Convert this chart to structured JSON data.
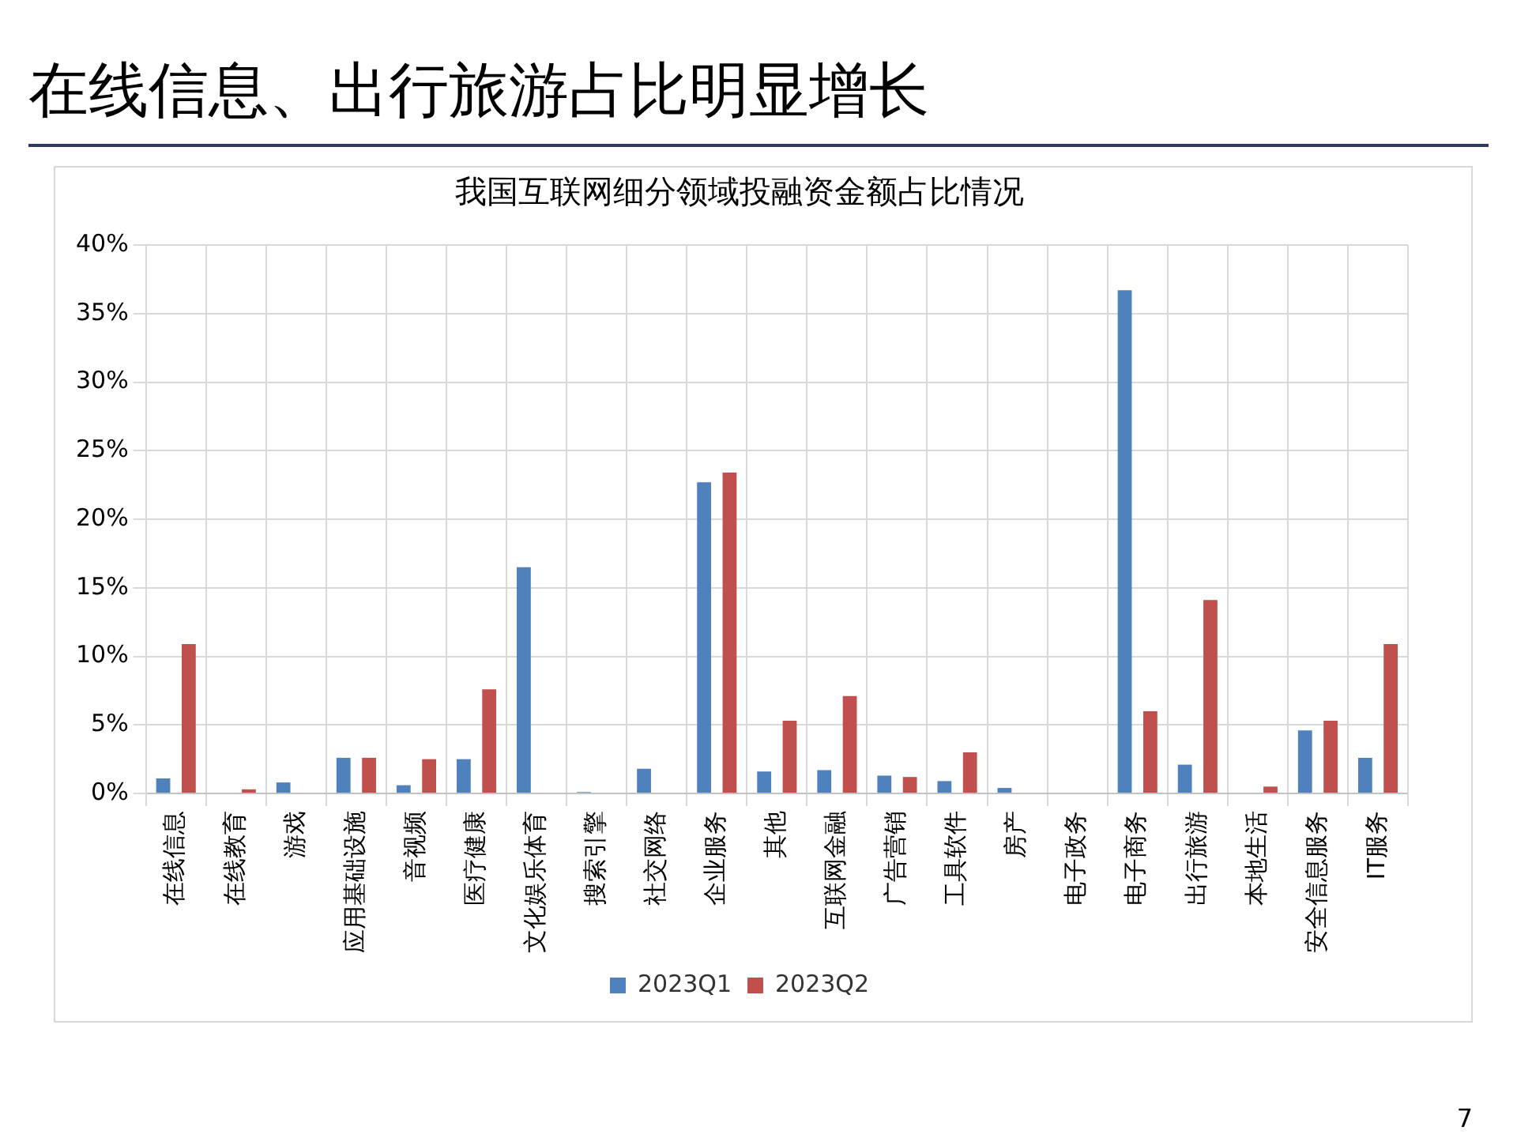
{
  "chart_data": {
    "type": "bar",
    "title": "在线信息、出行旅游占比明显增长",
    "subtitle": "我国互联网细分领域投融资金额占比情况",
    "categories": [
      "在线信息",
      "在线教育",
      "游戏",
      "应用基础设施",
      "音视频",
      "医疗健康",
      "文化娱乐体育",
      "搜索引擎",
      "社交网络",
      "企业服务",
      "其他",
      "互联网金融",
      "广告营销",
      "工具软件",
      "房产",
      "电子政务",
      "电子商务",
      "出行旅游",
      "本地生活",
      "安全信息服务",
      "IT服务"
    ],
    "series": [
      {
        "name": "2023Q1",
        "color": "#4f81bd",
        "values": [
          1.1,
          0,
          0.8,
          2.6,
          0.6,
          2.5,
          16.5,
          0.1,
          1.8,
          22.7,
          1.6,
          1.7,
          1.3,
          0.9,
          0.4,
          0,
          36.7,
          2.1,
          0,
          4.6,
          2.6
        ]
      },
      {
        "name": "2023Q2",
        "color": "#c0504d",
        "values": [
          10.9,
          0.3,
          0,
          2.6,
          2.5,
          7.6,
          0,
          0,
          0,
          23.4,
          5.3,
          7.1,
          1.2,
          3.0,
          0,
          0,
          6.0,
          14.1,
          0.5,
          5.3,
          10.9
        ]
      }
    ],
    "ylim": [
      0,
      40
    ],
    "yticks": [
      {
        "value": 0,
        "label": "0%"
      },
      {
        "value": 5,
        "label": "5%"
      },
      {
        "value": 10,
        "label": "10%"
      },
      {
        "value": 15,
        "label": "15%"
      },
      {
        "value": 20,
        "label": "20%"
      },
      {
        "value": 25,
        "label": "25%"
      },
      {
        "value": 30,
        "label": "30%"
      },
      {
        "value": 35,
        "label": "35%"
      },
      {
        "value": 40,
        "label": "40%"
      }
    ],
    "grid": true,
    "legend": "bottom",
    "annotations": [
      "7"
    ]
  }
}
